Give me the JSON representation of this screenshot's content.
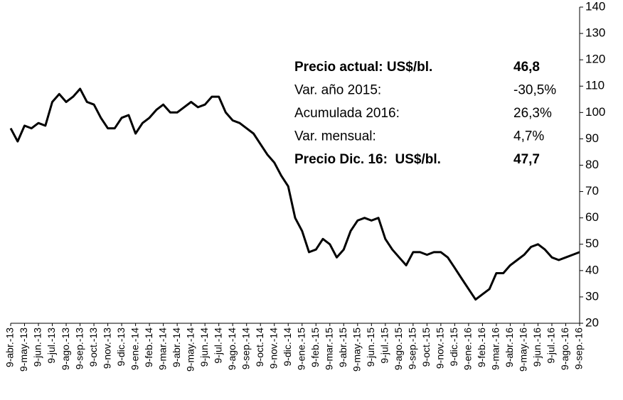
{
  "chart_data": {
    "type": "line",
    "categories": [
      "9-abr.-13",
      null,
      "9-may.-13",
      null,
      "9-jun.-13",
      null,
      "9-jul.-13",
      null,
      "9-ago.-13",
      null,
      "9-sep.-13",
      null,
      "9-oct.-13",
      null,
      "9-nov.-13",
      null,
      "9-dic.-13",
      null,
      "9-ene.-14",
      null,
      "9-feb.-14",
      null,
      "9-mar.-14",
      null,
      "9-abr.-14",
      null,
      "9-may.-14",
      null,
      "9-jun.-14",
      null,
      "9-jul.-14",
      null,
      "9-ago.-14",
      null,
      "9-sep.-14",
      null,
      "9-oct.-14",
      null,
      "9-nov.-14",
      null,
      "9-dic.-14",
      null,
      "9-ene.-15",
      null,
      "9-feb.-15",
      null,
      "9-mar.-15",
      null,
      "9-abr.-15",
      null,
      "9-may.-15",
      null,
      "9-jun.-15",
      null,
      "9-jul.-15",
      null,
      "9-ago.-15",
      null,
      "9-sep.-15",
      null,
      "9-oct.-15",
      null,
      "9-nov.-15",
      null,
      "9-dic.-15",
      null,
      "9-ene.-16",
      null,
      "9-feb.-16",
      null,
      "9-mar.-16",
      null,
      "9-abr.-16",
      null,
      "9-may.-16",
      null,
      "9-jun.-16",
      null,
      "9-jul.-16",
      null,
      "9-ago.-16",
      null,
      "9-sep.-16"
    ],
    "values": [
      94,
      89,
      95,
      94,
      96,
      95,
      104,
      107,
      104,
      106,
      109,
      104,
      103,
      98,
      94,
      94,
      98,
      99,
      92,
      96,
      98,
      101,
      103,
      100,
      100,
      102,
      104,
      102,
      103,
      106,
      106,
      100,
      97,
      96,
      94,
      92,
      88,
      84,
      81,
      76,
      72,
      60,
      55,
      47,
      48,
      52,
      50,
      45,
      48,
      55,
      59,
      60,
      59,
      60,
      52,
      48,
      45,
      42,
      47,
      47,
      46,
      47,
      47,
      45,
      41,
      37,
      33,
      29,
      31,
      33,
      39,
      39,
      42,
      44,
      46,
      49,
      50,
      48,
      45,
      44,
      45,
      46,
      47
    ],
    "color": "#000000",
    "ylim": [
      20,
      140
    ],
    "yticks": [
      20,
      30,
      40,
      50,
      60,
      70,
      80,
      90,
      100,
      110,
      120,
      130,
      140
    ],
    "annotations": [
      {
        "label": "Precio actual: US$/bl.",
        "value": "46,8",
        "bold": true
      },
      {
        "label": "Var. año 2015:",
        "value": "-30,5%",
        "bold": false
      },
      {
        "label": "Acumulada 2016:",
        "value": "26,3%",
        "bold": false
      },
      {
        "label": "Var. mensual:",
        "value": "4,7%",
        "bold": false
      },
      {
        "label": "Precio Dic. 16:  US$/bl.",
        "value": "47,7",
        "bold": true
      }
    ]
  }
}
